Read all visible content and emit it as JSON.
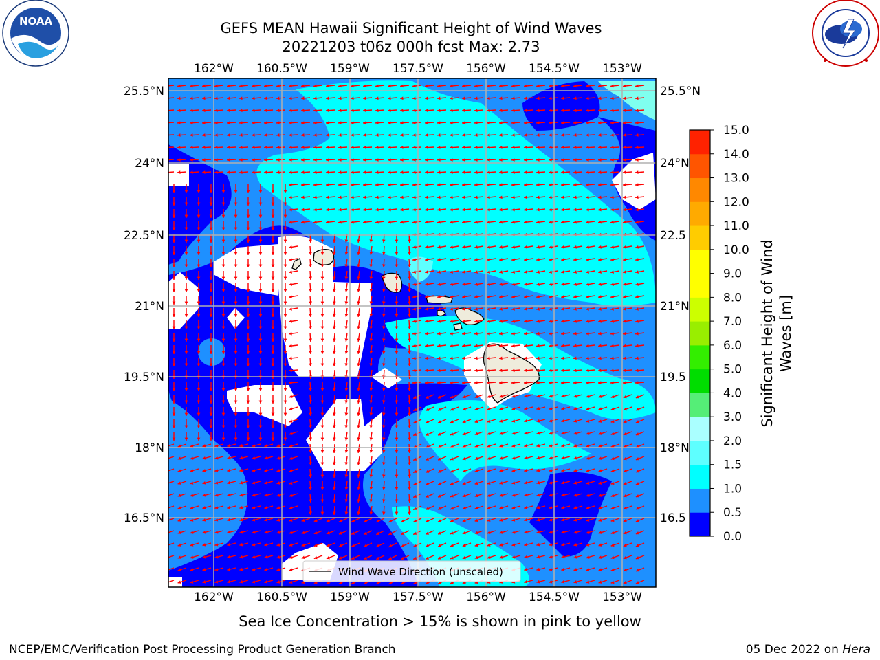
{
  "title": {
    "line1": "GEFS MEAN Hawaii Significant Height of Wind Waves",
    "line2": "20221203 t06z 000h fcst   Max: 2.73"
  },
  "logos": {
    "noaa": {
      "text": "NOAA",
      "ring_text": "NATIONAL OCEANIC AND ATMOSPHERIC ADMINISTRATION · U.S. DEPARTMENT OF COMMERCE"
    },
    "nws": {
      "ring_text": "NATIONAL WEATHER SERVICE"
    }
  },
  "map": {
    "lon_ticks": [
      "162°W",
      "160.5°W",
      "159°W",
      "157.5°W",
      "156°W",
      "154.5°W",
      "153°W"
    ],
    "lat_ticks": [
      "25.5°N",
      "24°N",
      "22.5°N",
      "21°N",
      "19.5°N",
      "18°N",
      "16.5°N"
    ],
    "lat_ticks_right": [
      "25.5°N",
      "24°N",
      "22.5",
      "21°N",
      "19.5",
      "18°N",
      "16.5"
    ],
    "legend_label": "Wind Wave Direction (unscaled)",
    "arrow_color": "#ff0000",
    "land_color": "#efecdc",
    "grid_color": "#b0b0b0"
  },
  "colorbar": {
    "label_line1": "Significant Height of Wind",
    "label_line2": "Waves [m]",
    "ticks": [
      "0.0",
      "0.5",
      "1.0",
      "1.5",
      "2.0",
      "3.0",
      "4.0",
      "5.0",
      "6.0",
      "7.0",
      "8.0",
      "9.0",
      "10.0",
      "11.0",
      "12.0",
      "13.0",
      "14.0",
      "15.0"
    ],
    "colors": [
      "#0000ff",
      "#1e90ff",
      "#00ffff",
      "#5effff",
      "#aaffff",
      "#55ee77",
      "#00dd00",
      "#33ee00",
      "#99ee00",
      "#ccff00",
      "#ffff00",
      "#ffff00",
      "#ffcc00",
      "#ffaa00",
      "#ff8800",
      "#ff5500",
      "#ff2200"
    ]
  },
  "footer": {
    "note": "Sea Ice Concentration > 15% is shown in pink to yellow",
    "credit": "NCEP/EMC/Verification Post Processing Product Generation Branch",
    "date": "05 Dec 2022 on ",
    "host": "Hera"
  }
}
